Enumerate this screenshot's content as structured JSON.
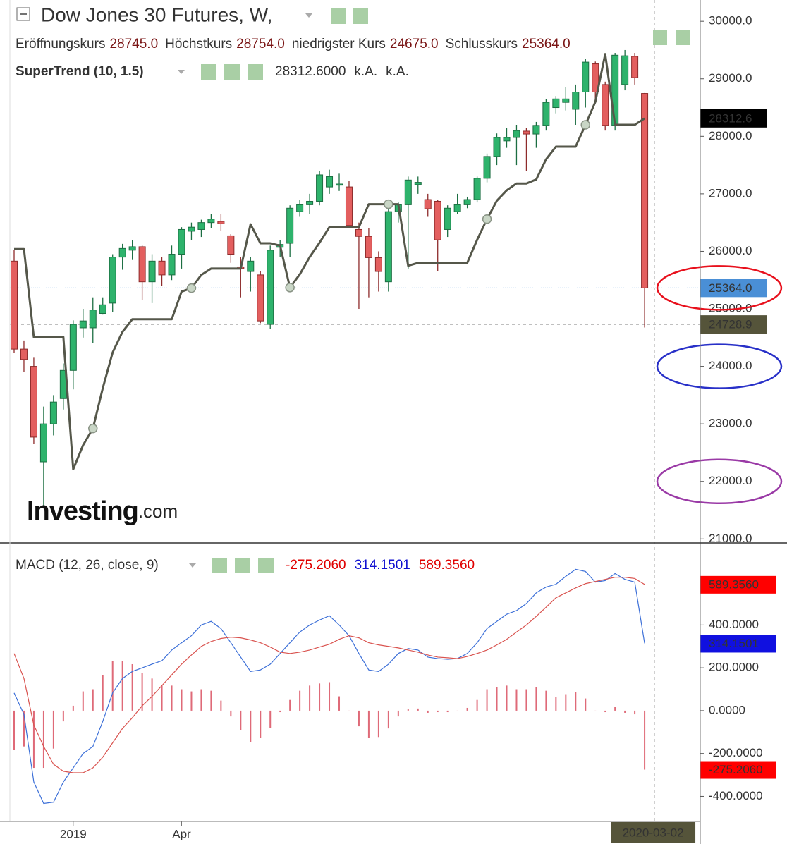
{
  "chart_data": [
    {
      "type": "candlestick",
      "title": "Dow Jones 30 Futures, W,",
      "legend": [
        {
          "label": "Eröffnungskurs",
          "value": "28745.0"
        },
        {
          "label": "Höchstkurs",
          "value": "28754.0"
        },
        {
          "label": "niedrigster Kurs",
          "value": "24675.0"
        },
        {
          "label": "Schlusskurs",
          "value": "25364.0"
        }
      ],
      "categories": [
        null,
        null,
        null,
        null,
        null,
        null,
        "2019",
        null,
        null,
        null,
        null,
        null,
        null,
        null,
        null,
        null,
        null,
        "Apr",
        null,
        null,
        null,
        null,
        null,
        null,
        null,
        null,
        null,
        null,
        null,
        null,
        null,
        null,
        null,
        null,
        null,
        null,
        null,
        null,
        null,
        null,
        null,
        null,
        null,
        null,
        null,
        null,
        null,
        null,
        null,
        null,
        null,
        null,
        null,
        null,
        null,
        null,
        null,
        null,
        null,
        null,
        null,
        null,
        null,
        null,
        null
      ],
      "open": [
        25830,
        24300,
        24000,
        22340,
        23000,
        23440,
        23930,
        24670,
        24670,
        24920,
        25100,
        25900,
        26020,
        26080,
        25470,
        25830,
        25590,
        25950,
        26350,
        26380,
        26500,
        26520,
        26270,
        25730,
        25650,
        25590,
        24730,
        26070,
        26140,
        26690,
        26810,
        26870,
        27120,
        27150,
        27120,
        26380,
        26260,
        25890,
        25470,
        26690,
        26810,
        27160,
        26900,
        26870,
        26380,
        26690,
        26810,
        26900,
        27270,
        27650,
        27920,
        27980,
        28090,
        28040,
        28190,
        28500,
        28590,
        28470,
        28770,
        29260,
        28900,
        28190,
        28900,
        29390,
        28745
      ],
      "high": [
        26020,
        24450,
        24150,
        23300,
        23500,
        24050,
        24800,
        25000,
        25200,
        25200,
        25950,
        26130,
        26200,
        26100,
        25950,
        25900,
        26100,
        26420,
        26500,
        26550,
        26650,
        26650,
        26300,
        25900,
        25900,
        25650,
        26100,
        26200,
        26800,
        26900,
        27000,
        27400,
        27420,
        27350,
        27220,
        26500,
        26400,
        26000,
        26800,
        26850,
        27300,
        27300,
        27000,
        26900,
        26800,
        27000,
        26950,
        27300,
        27700,
        28050,
        28150,
        28200,
        28150,
        28250,
        28650,
        28700,
        28850,
        28900,
        29350,
        29300,
        28950,
        29450,
        29500,
        29450,
        28754
      ],
      "low": [
        24240,
        23900,
        22650,
        21540,
        22800,
        23250,
        23600,
        24500,
        24400,
        24900,
        24950,
        25680,
        25850,
        25150,
        25100,
        25400,
        25500,
        25700,
        26200,
        26250,
        26400,
        26350,
        25800,
        25200,
        25300,
        24750,
        24650,
        25900,
        25900,
        26600,
        26650,
        26800,
        27000,
        27050,
        26400,
        25000,
        25200,
        25300,
        25300,
        26500,
        25700,
        27000,
        26600,
        25650,
        26250,
        26650,
        26750,
        26850,
        27200,
        27500,
        27800,
        27500,
        27400,
        27800,
        28100,
        28400,
        28450,
        28200,
        28500,
        28600,
        28100,
        28100,
        28800,
        28900,
        24675
      ],
      "close": [
        24300,
        24120,
        22770,
        23000,
        23380,
        23930,
        24730,
        24790,
        24980,
        25070,
        25900,
        26050,
        26080,
        25470,
        25830,
        25590,
        25950,
        26380,
        26420,
        26500,
        26560,
        26480,
        25950,
        25700,
        25830,
        24790,
        26020,
        26120,
        26750,
        26810,
        26870,
        27330,
        27300,
        27170,
        26450,
        26260,
        25890,
        25650,
        26690,
        26810,
        27240,
        27200,
        26740,
        26200,
        26750,
        26810,
        26900,
        27270,
        27650,
        27980,
        27980,
        28100,
        28040,
        28190,
        28590,
        28650,
        28650,
        28770,
        29290,
        28770,
        28190,
        29410,
        29400,
        29020,
        25364
      ],
      "up_color": "#2eb36c",
      "up_edge": "#1c6e42",
      "down_color": "#e35f5f",
      "down_edge": "#8e2b2b",
      "overlay": {
        "name": "SuperTrend (10, 1.5)",
        "value_text": "28312.6000",
        "extra": [
          "k.A.",
          "k.A."
        ],
        "color": "#55574a",
        "values": [
          26040,
          26040,
          24510,
          24510,
          24510,
          24510,
          22210,
          22630,
          22920,
          23620,
          24240,
          24600,
          24820,
          24820,
          24820,
          24820,
          24820,
          25300,
          25360,
          25590,
          25700,
          25700,
          25700,
          25700,
          26470,
          26140,
          26140,
          26100,
          25370,
          25600,
          25900,
          26150,
          26420,
          26420,
          26420,
          26420,
          26820,
          26820,
          26820,
          26820,
          25750,
          25800,
          25800,
          25800,
          25800,
          25800,
          25800,
          26200,
          26560,
          26880,
          27060,
          27180,
          27180,
          27250,
          27600,
          27820,
          27820,
          27820,
          28200,
          28600,
          29430,
          28200,
          28200,
          28200,
          28312.6
        ],
        "flips": [
          null,
          null,
          null,
          null,
          null,
          null,
          null,
          null,
          22920,
          null,
          null,
          null,
          null,
          null,
          null,
          null,
          null,
          null,
          25360,
          null,
          null,
          null,
          null,
          null,
          null,
          null,
          null,
          null,
          25370,
          null,
          null,
          null,
          null,
          null,
          null,
          null,
          null,
          null,
          26820,
          null,
          null,
          null,
          null,
          null,
          null,
          null,
          null,
          null,
          26560,
          null,
          null,
          null,
          null,
          null,
          null,
          null,
          null,
          null,
          28200,
          null,
          null,
          null,
          null,
          null,
          null
        ]
      },
      "price_labels": [
        {
          "value": 28312.6,
          "label": "28312.6",
          "color": "#000000",
          "line": "none"
        },
        {
          "value": 25364,
          "label": "25364.0",
          "color": "#4a8fd6",
          "line": "dotted"
        },
        {
          "value": 24728.9,
          "label": "24728.9",
          "color": "#55543a",
          "line": "dashed"
        }
      ],
      "crosshair_date": "2020-03-02",
      "highlights": [
        {
          "value": 25364,
          "color": "#e8101c"
        },
        {
          "value": 24000,
          "color": "#2830c8"
        },
        {
          "value": 22000,
          "color": "#9a3aa6"
        }
      ],
      "watermark": [
        "Investing",
        ".com"
      ],
      "ylim": [
        20930,
        30370
      ],
      "yticks": [
        {
          "value": 21000,
          "label": "21000.0"
        },
        {
          "value": 22000,
          "label": "22000.0"
        },
        {
          "value": 23000,
          "label": "23000.0"
        },
        {
          "value": 24000,
          "label": "24000.0"
        },
        {
          "value": 25000,
          "label": "25000.0"
        },
        {
          "value": 26000,
          "label": "26000.0"
        },
        {
          "value": 27000,
          "label": "27000.0"
        },
        {
          "value": 28000,
          "label": "28000.0"
        },
        {
          "value": 29000,
          "label": "29000.0"
        },
        {
          "value": 30000,
          "label": "30000.0"
        }
      ],
      "grid": false
    },
    {
      "type": "macd",
      "title": "MACD (12, 26, close, 9)",
      "header_values": [
        {
          "text": "-275.2060",
          "color": "#e00000"
        },
        {
          "text": "314.1501",
          "color": "#1010d0"
        },
        {
          "text": "589.3560",
          "color": "#e00000"
        }
      ],
      "histogram": {
        "color": "#df6a78",
        "values": [
          -183,
          -167,
          -267,
          -267,
          -177,
          -50,
          23,
          90,
          100,
          167,
          233,
          233,
          217,
          177,
          150,
          117,
          117,
          100,
          90,
          100,
          93,
          47,
          -27,
          -90,
          -147,
          -127,
          -80,
          -7,
          50,
          93,
          117,
          127,
          133,
          67,
          0,
          -73,
          -127,
          -123,
          -83,
          -27,
          7,
          10,
          -10,
          -7,
          -7,
          0,
          13,
          50,
          100,
          110,
          117,
          100,
          100,
          110,
          93,
          63,
          77,
          87,
          57,
          -3,
          -7,
          17,
          -10,
          -17,
          -275.206
        ]
      },
      "series": [
        {
          "color": "#3d70d8",
          "values": [
            83,
            -17,
            -333,
            -433,
            -427,
            -333,
            -267,
            -200,
            -167,
            -50,
            83,
            150,
            183,
            200,
            217,
            233,
            283,
            317,
            350,
            400,
            417,
            383,
            317,
            250,
            183,
            190,
            217,
            267,
            317,
            367,
            400,
            423,
            443,
            400,
            350,
            267,
            190,
            183,
            217,
            267,
            290,
            283,
            250,
            243,
            240,
            243,
            267,
            317,
            383,
            417,
            450,
            467,
            500,
            550,
            577,
            590,
            627,
            660,
            650,
            600,
            607,
            640,
            613,
            600,
            314.1501
          ]
        },
        {
          "color": "#d9534f",
          "values": [
            267,
            150,
            -67,
            -167,
            -250,
            -283,
            -290,
            -290,
            -267,
            -217,
            -150,
            -83,
            -33,
            23,
            67,
            117,
            167,
            217,
            260,
            300,
            323,
            337,
            343,
            340,
            330,
            317,
            297,
            273,
            267,
            273,
            283,
            297,
            310,
            333,
            350,
            340,
            317,
            307,
            300,
            293,
            283,
            273,
            260,
            250,
            247,
            243,
            253,
            267,
            283,
            307,
            333,
            367,
            400,
            440,
            483,
            527,
            550,
            573,
            593,
            603,
            613,
            623,
            623,
            617,
            589.356
          ]
        }
      ],
      "price_labels": [
        {
          "value": 589.356,
          "label": "589.3560",
          "color": "#ff0000"
        },
        {
          "value": 314.1501,
          "label": "314.1501",
          "color": "#1010e0"
        },
        {
          "value": -275.206,
          "label": "-275.2060",
          "color": "#ff0000"
        }
      ],
      "ylim": [
        -517,
        783
      ],
      "yticks": [
        {
          "value": -400,
          "label": "-400.0000"
        },
        {
          "value": -200,
          "label": "-200.0000"
        },
        {
          "value": 0,
          "label": "0.0000"
        },
        {
          "value": 200,
          "label": "200.0000"
        },
        {
          "value": 400,
          "label": "400.0000"
        }
      ],
      "grid": false
    }
  ]
}
